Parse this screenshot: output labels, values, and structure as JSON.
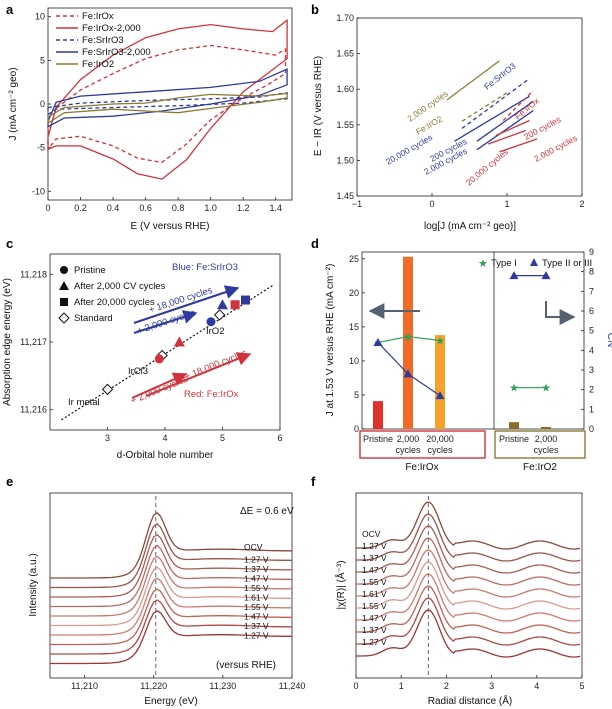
{
  "figure": {
    "panel_labels": [
      "a",
      "b",
      "c",
      "d",
      "e",
      "f"
    ]
  },
  "colors": {
    "red": "#d2323c",
    "blue": "#2e3a9e",
    "olive": "#8c7a32",
    "green": "#2ca05a",
    "orange1": "#e0322d",
    "orange2": "#f06a28",
    "orange3": "#f7a02a",
    "gray": "#556070",
    "brown": "#8c6a2a"
  },
  "chart_data": [
    {
      "panel": "a",
      "type": "line",
      "xlabel": "E (V versus RHE)",
      "ylabel": "J (mA cm⁻² geo)",
      "xlim": [
        0,
        1.5
      ],
      "ylim": [
        -11,
        11
      ],
      "xticks": [
        "0",
        "0.2",
        "0.4",
        "0.6",
        "0.8",
        "1.0",
        "1.2",
        "1.4"
      ],
      "yticks": [
        "10",
        "5",
        "0",
        "-5",
        "-10"
      ],
      "legend": [
        "Fe:IrOx",
        "Fe:IrOx-2,000",
        "Fe:SrIrO3",
        "Fe:SrIrO3-2,000",
        "Fe:IrO2"
      ],
      "series": [
        {
          "name": "Fe:IrOx",
          "style": "dashed",
          "color": "red",
          "upper": [
            [
              0,
              -3.5
            ],
            [
              0.05,
              -0.5
            ],
            [
              0.2,
              1.6
            ],
            [
              0.4,
              3.5
            ],
            [
              0.6,
              5.2
            ],
            [
              0.8,
              6.2
            ],
            [
              1.0,
              6.7
            ],
            [
              1.2,
              6.2
            ],
            [
              1.4,
              5.6
            ],
            [
              1.46,
              6.3
            ]
          ],
          "lower": [
            [
              1.46,
              3.5
            ],
            [
              1.35,
              2.2
            ],
            [
              1.2,
              0.7
            ],
            [
              1.0,
              -1.8
            ],
            [
              0.85,
              -4.6
            ],
            [
              0.7,
              -6.7
            ],
            [
              0.55,
              -6.2
            ],
            [
              0.4,
              -4.8
            ],
            [
              0.2,
              -3.7
            ],
            [
              0.05,
              -4.0
            ],
            [
              0,
              -5.2
            ]
          ]
        },
        {
          "name": "Fe:IrOx-2,000",
          "style": "solid",
          "color": "red",
          "upper": [
            [
              0,
              -3.8
            ],
            [
              0.05,
              -0.4
            ],
            [
              0.2,
              2.8
            ],
            [
              0.4,
              5.6
            ],
            [
              0.6,
              7.6
            ],
            [
              0.8,
              8.6
            ],
            [
              1.0,
              9.1
            ],
            [
              1.2,
              8.6
            ],
            [
              1.38,
              8.3
            ],
            [
              1.47,
              9.6
            ]
          ],
          "lower": [
            [
              1.47,
              5.2
            ],
            [
              1.35,
              3.5
            ],
            [
              1.2,
              1.4
            ],
            [
              1.0,
              -2.8
            ],
            [
              0.85,
              -6.4
            ],
            [
              0.7,
              -8.6
            ],
            [
              0.55,
              -8.0
            ],
            [
              0.4,
              -6.3
            ],
            [
              0.2,
              -4.8
            ],
            [
              0.05,
              -4.8
            ],
            [
              0,
              -5.2
            ]
          ]
        },
        {
          "name": "Fe:SrIrO3",
          "style": "dashed",
          "color": "blue",
          "upper": [
            [
              0,
              -0.4
            ],
            [
              0.2,
              0.1
            ],
            [
              0.6,
              0.4
            ],
            [
              1.0,
              0.6
            ],
            [
              1.3,
              0.8
            ],
            [
              1.47,
              1.3
            ]
          ],
          "lower": [
            [
              1.47,
              0.6
            ],
            [
              1.2,
              0.1
            ],
            [
              0.8,
              -0.2
            ],
            [
              0.4,
              -0.4
            ],
            [
              0.05,
              -0.6
            ],
            [
              0,
              -1.2
            ]
          ]
        },
        {
          "name": "Fe:SrIrO3-2,000",
          "style": "solid",
          "color": "blue",
          "upper": [
            [
              0,
              -2.0
            ],
            [
              0.05,
              0.2
            ],
            [
              0.2,
              0.9
            ],
            [
              0.6,
              1.4
            ],
            [
              1.0,
              1.9
            ],
            [
              1.3,
              2.6
            ],
            [
              1.47,
              4.0
            ]
          ],
          "lower": [
            [
              1.47,
              2.2
            ],
            [
              1.3,
              1.0
            ],
            [
              1.0,
              0.0
            ],
            [
              0.7,
              -0.8
            ],
            [
              0.4,
              -1.4
            ],
            [
              0.1,
              -1.6
            ],
            [
              0,
              -2.6
            ]
          ]
        },
        {
          "name": "Fe:IrO2",
          "style": "solid",
          "color": "olive",
          "upper": [
            [
              0,
              -1.5
            ],
            [
              0.1,
              -0.4
            ],
            [
              0.4,
              0.0
            ],
            [
              0.6,
              0.1
            ],
            [
              0.8,
              0.7
            ],
            [
              1.0,
              1.1
            ],
            [
              1.3,
              0.9
            ],
            [
              1.47,
              1.2
            ]
          ],
          "lower": [
            [
              1.47,
              0.7
            ],
            [
              1.3,
              0.2
            ],
            [
              1.0,
              -0.5
            ],
            [
              0.8,
              -1.0
            ],
            [
              0.6,
              -0.8
            ],
            [
              0.4,
              -0.6
            ],
            [
              0.1,
              -1.0
            ],
            [
              0,
              -2.2
            ]
          ]
        }
      ]
    },
    {
      "panel": "b",
      "type": "line",
      "xlabel": "log[J (mA cm⁻² geo)]",
      "ylabel": "E − IR (V versus RHE)",
      "xlim": [
        -1,
        2
      ],
      "ylim": [
        1.45,
        1.7
      ],
      "xticks": [
        "−1",
        "0",
        "1",
        "2"
      ],
      "yticks": [
        "1.70",
        "1.65",
        "1.60",
        "1.55",
        "1.50",
        "1.45"
      ],
      "series": [
        {
          "name": "2,000 cycles olive",
          "color": "olive",
          "style": "solid",
          "x": [
            0.2,
            0.9
          ],
          "y": [
            1.585,
            1.64
          ]
        },
        {
          "name": "Fe:IrO2",
          "color": "olive",
          "style": "dashed",
          "x": [
            0.4,
            1.0
          ],
          "y": [
            1.555,
            1.595
          ]
        },
        {
          "name": "Fe:SrIrO3",
          "color": "blue",
          "style": "dashed",
          "x": [
            0.4,
            1.3
          ],
          "y": [
            1.545,
            1.615
          ]
        },
        {
          "name": "20,000 cycles blue",
          "color": "blue",
          "style": "solid",
          "x": [
            0.3,
            1.3
          ],
          "y": [
            1.527,
            1.59
          ]
        },
        {
          "name": "200 cycles blue",
          "color": "blue",
          "style": "solid",
          "x": [
            0.6,
            1.35
          ],
          "y": [
            1.527,
            1.583
          ]
        },
        {
          "name": "2,000 cycles blue",
          "color": "blue",
          "style": "solid",
          "x": [
            0.6,
            1.35
          ],
          "y": [
            1.515,
            1.57
          ]
        },
        {
          "name": "Fe:IrOx",
          "color": "red",
          "style": "dashed",
          "x": [
            0.95,
            1.35
          ],
          "y": [
            1.556,
            1.598
          ]
        },
        {
          "name": "200 cycles red",
          "color": "red",
          "style": "solid",
          "x": [
            0.85,
            1.3
          ],
          "y": [
            1.535,
            1.556
          ]
        },
        {
          "name": "20,000 cycles red",
          "color": "red",
          "style": "solid",
          "x": [
            0.75,
            1.25
          ],
          "y": [
            1.523,
            1.542
          ]
        },
        {
          "name": "2,000 cycles red",
          "color": "red",
          "style": "solid",
          "x": [
            0.9,
            1.4
          ],
          "y": [
            1.512,
            1.53
          ]
        }
      ],
      "annotations": [
        "2,000 cycles",
        "Fe:IrO2",
        "Fe:SrIrO3",
        "20,000 cycles",
        "200 cycles",
        "2,000 cycles",
        "Fe:IrOx",
        "200 cycles",
        "20,000 cycles",
        "2,000 cycles"
      ]
    },
    {
      "panel": "c",
      "type": "scatter",
      "xlabel": "d-Orbital hole number",
      "ylabel": "Absorption edge energy (eV)",
      "xlim": [
        2,
        6
      ],
      "ylim": [
        11215.7,
        11218.3
      ],
      "xticks": [
        "3",
        "4",
        "5",
        "6"
      ],
      "yticks": [
        "11,218",
        "11,217",
        "11,216"
      ],
      "legend": [
        "Pristine",
        "After 2,000 CV cycles",
        "After 20,000 cycles",
        "Standard"
      ],
      "fit_line": {
        "x": [
          2.2,
          5.9
        ],
        "y": [
          11215.85,
          11217.85
        ]
      },
      "points": [
        {
          "label": "Ir metal",
          "x": 3.0,
          "y": 11216.3,
          "marker": "diamond",
          "color": "white"
        },
        {
          "label": "IrCl3",
          "x": 3.95,
          "y": 11216.8,
          "marker": "diamond",
          "color": "white"
        },
        {
          "label": "IrO2",
          "x": 4.95,
          "y": 11217.4,
          "marker": "diamond",
          "color": "white"
        },
        {
          "label": "Fe:SrIrO3 pristine",
          "x": 4.8,
          "y": 11217.3,
          "marker": "circle",
          "color": "blue"
        },
        {
          "label": "Fe:SrIrO3 2,000",
          "x": 5.0,
          "y": 11217.55,
          "marker": "triangle",
          "color": "blue"
        },
        {
          "label": "Fe:SrIrO3 20,000",
          "x": 5.4,
          "y": 11217.62,
          "marker": "square",
          "color": "blue"
        },
        {
          "label": "Fe:IrOx pristine",
          "x": 3.9,
          "y": 11216.75,
          "marker": "circle",
          "color": "red"
        },
        {
          "label": "Fe:IrOx 2,000",
          "x": 4.25,
          "y": 11217.0,
          "marker": "triangle",
          "color": "red"
        },
        {
          "label": "Fe:IrOx 20,000",
          "x": 5.22,
          "y": 11217.55,
          "marker": "square",
          "color": "red"
        }
      ],
      "annotations": {
        "blue_title": "Blue: Fe:SrIrO3",
        "red_title": "Red: Fe:IrOx",
        "arrow1": "+ 18,000 cycles",
        "arrow2": "+ 2,000 cycles",
        "arrow3": "+ 18,000 cycles",
        "arrow4": "+ 2,000 cycles",
        "std_irmetal": "Ir metal",
        "std_ircl3": "IrCl3",
        "std_iro2": "IrO2"
      }
    },
    {
      "panel": "d",
      "type": "bar",
      "ylabel": "J at 1.53 V versus RHE (mA cm⁻²)",
      "y2label": "CN",
      "ylim": [
        0,
        26
      ],
      "y2lim": [
        0,
        9
      ],
      "yticks": [
        "0",
        "5",
        "10",
        "15",
        "20",
        "25"
      ],
      "y2ticks": [
        "0",
        "1",
        "2",
        "3",
        "4",
        "5",
        "6",
        "7",
        "8",
        "9"
      ],
      "categories": [
        "Pristine",
        "2,000 cycles",
        "20,000 cycles",
        "Pristine",
        "2,000 cycles"
      ],
      "groups": [
        "Fe:IrOx",
        "Fe:IrO2"
      ],
      "values": [
        4.1,
        25.3,
        13.8,
        1.0,
        0.3
      ],
      "bar_colors": [
        "orange1",
        "orange2",
        "orange3",
        "brown",
        "brown"
      ],
      "legend": [
        "Type I",
        "Type II or III"
      ],
      "cn_type1": [
        {
          "x": 0,
          "y": 4.4
        },
        {
          "x": 1,
          "y": 4.7
        },
        {
          "x": 2,
          "y": 4.5
        },
        {
          "x": 3,
          "y": 2.1
        },
        {
          "x": 4,
          "y": 2.1
        }
      ],
      "cn_type2": [
        {
          "x": 0,
          "y": 4.4
        },
        {
          "x": 1,
          "y": 2.8
        },
        {
          "x": 2,
          "y": 1.7
        },
        {
          "x": 3,
          "y": 7.8
        },
        {
          "x": 4,
          "y": 7.8
        }
      ]
    },
    {
      "panel": "e",
      "type": "line",
      "xlabel": "Energy (eV)",
      "ylabel": "Intensity (a.u.)",
      "xlim": [
        11205,
        11240
      ],
      "xticks": [
        "11,210",
        "11,220",
        "11,230",
        "11,240"
      ],
      "note": "ΔE = 0.6 eV",
      "footer": "(versus RHE)",
      "labels": [
        "OCV",
        "1.27 V",
        "1.37 V",
        "1.47 V",
        "1.55 V",
        "1.61 V",
        "1.55 V",
        "1.47 V",
        "1.37 V",
        "1.27 V"
      ],
      "line_colors": [
        "#8a4a3a",
        "#9a5448",
        "#aa5e52",
        "#bb6a5e",
        "#c87a6a",
        "#d89a8a",
        "#cf7a6a",
        "#c26050",
        "#b04840",
        "#9e3434"
      ]
    },
    {
      "panel": "f",
      "type": "line",
      "xlabel": "Radial distance (Å)",
      "ylabel": "|χ(R)| (Å⁻³)",
      "xlim": [
        0,
        5
      ],
      "xticks": [
        "0",
        "1",
        "2",
        "3",
        "4",
        "5"
      ],
      "labels": [
        "OCV",
        "1.27 V",
        "1.37 V",
        "1.47 V",
        "1.55 V",
        "1.61 V",
        "1.55 V",
        "1.47 V",
        "1.37 V",
        "1.27 V"
      ],
      "line_colors": [
        "#8a4a3a",
        "#9a5448",
        "#aa5e52",
        "#bb6a5e",
        "#c87a6a",
        "#d89a8a",
        "#cf7a6a",
        "#c26050",
        "#b04840",
        "#9e3434"
      ]
    }
  ]
}
